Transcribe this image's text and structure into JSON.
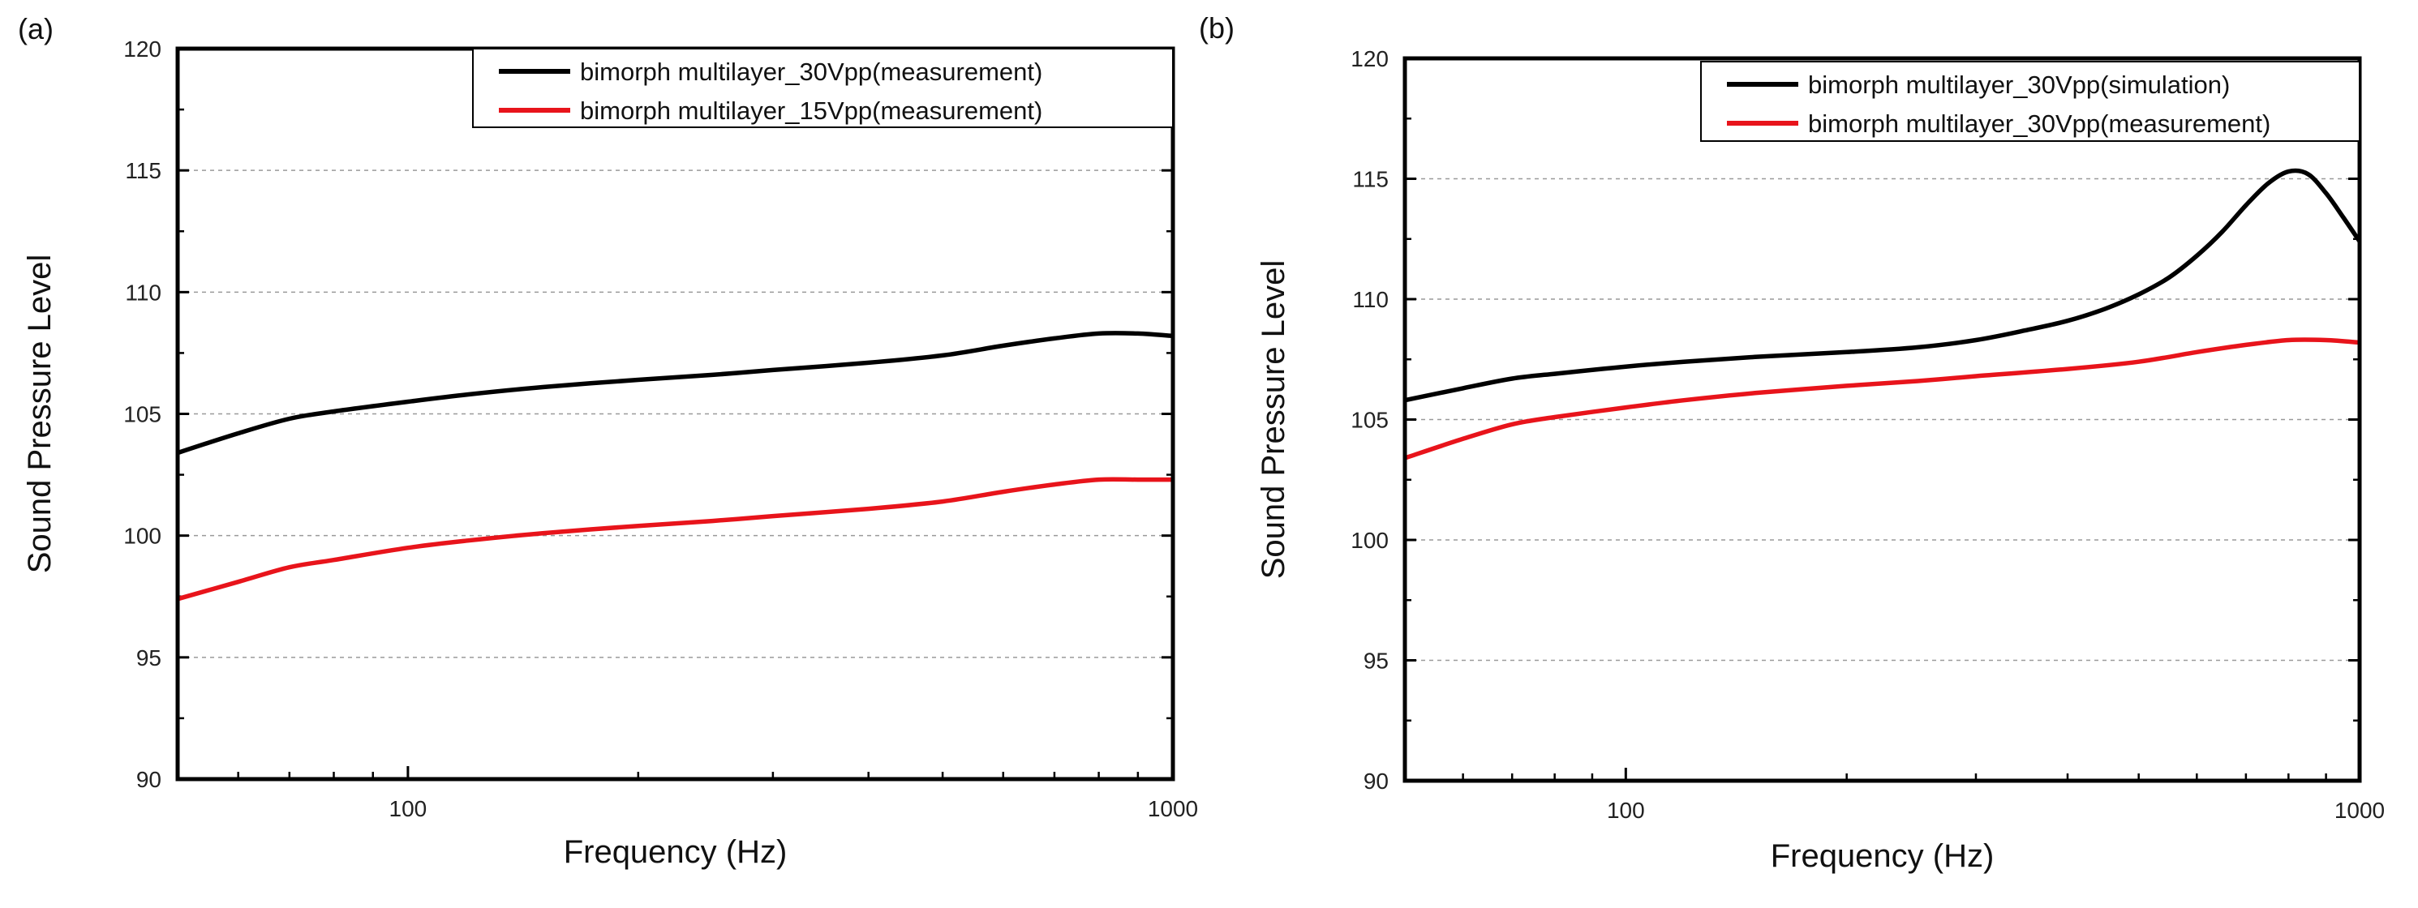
{
  "chart_data": [
    {
      "type": "line",
      "panel_label": "(a)",
      "xlabel": "Frequency (Hz)",
      "ylabel": "Sound Pressure Level",
      "xscale": "log",
      "xlim": [
        50,
        1000
      ],
      "ylim": [
        90,
        120
      ],
      "yticks": [
        90,
        95,
        100,
        105,
        110,
        115,
        120
      ],
      "ytick_labels": [
        "90",
        "95",
        "100",
        "105",
        "110",
        "115",
        "120"
      ],
      "xticks": [
        100,
        1000
      ],
      "xtick_labels": [
        "100",
        "1000"
      ],
      "grid": "horizontal-dashed",
      "legend_position": "top-right",
      "series": [
        {
          "name": "bimorph multilayer_30Vpp(measurement)",
          "color": "#000000",
          "x": [
            50,
            60,
            70,
            80,
            100,
            120,
            150,
            200,
            250,
            300,
            400,
            500,
            600,
            700,
            800,
            900,
            1000
          ],
          "values": [
            103.4,
            104.2,
            104.8,
            105.1,
            105.5,
            105.8,
            106.1,
            106.4,
            106.6,
            106.8,
            107.1,
            107.4,
            107.8,
            108.1,
            108.3,
            108.3,
            108.2
          ]
        },
        {
          "name": "bimorph multilayer_15Vpp(measurement)",
          "color": "#e8141b",
          "x": [
            50,
            60,
            70,
            80,
            100,
            120,
            150,
            200,
            250,
            300,
            400,
            500,
            600,
            700,
            800,
            900,
            1000
          ],
          "values": [
            97.4,
            98.1,
            98.7,
            99.0,
            99.5,
            99.8,
            100.1,
            100.4,
            100.6,
            100.8,
            101.1,
            101.4,
            101.8,
            102.1,
            102.3,
            102.3,
            102.3
          ]
        }
      ]
    },
    {
      "type": "line",
      "panel_label": "(b)",
      "xlabel": "Frequency (Hz)",
      "ylabel": "Sound Pressure Level",
      "xscale": "log",
      "xlim": [
        50,
        1000
      ],
      "ylim": [
        90,
        120
      ],
      "yticks": [
        90,
        95,
        100,
        105,
        110,
        115,
        120
      ],
      "ytick_labels": [
        "90",
        "95",
        "100",
        "105",
        "110",
        "115",
        "120"
      ],
      "xticks": [
        100,
        1000
      ],
      "xtick_labels": [
        "100",
        "1000"
      ],
      "grid": "horizontal-dashed",
      "legend_position": "top-right",
      "series": [
        {
          "name": "bimorph multilayer_30Vpp(simulation)",
          "color": "#000000",
          "x": [
            50,
            60,
            70,
            80,
            100,
            120,
            150,
            200,
            250,
            300,
            350,
            400,
            450,
            500,
            550,
            600,
            650,
            700,
            750,
            800,
            850,
            900,
            950,
            1000
          ],
          "values": [
            105.8,
            106.3,
            106.7,
            106.9,
            107.2,
            107.4,
            107.6,
            107.8,
            108.0,
            108.3,
            108.7,
            109.1,
            109.6,
            110.2,
            110.9,
            111.8,
            112.8,
            113.9,
            114.8,
            115.3,
            115.2,
            114.4,
            113.4,
            112.4
          ]
        },
        {
          "name": "bimorph multilayer_30Vpp(measurement)",
          "color": "#e8141b",
          "x": [
            50,
            60,
            70,
            80,
            100,
            120,
            150,
            200,
            250,
            300,
            400,
            500,
            600,
            700,
            800,
            900,
            1000
          ],
          "values": [
            103.4,
            104.2,
            104.8,
            105.1,
            105.5,
            105.8,
            106.1,
            106.4,
            106.6,
            106.8,
            107.1,
            107.4,
            107.8,
            108.1,
            108.3,
            108.3,
            108.2
          ]
        }
      ]
    }
  ]
}
